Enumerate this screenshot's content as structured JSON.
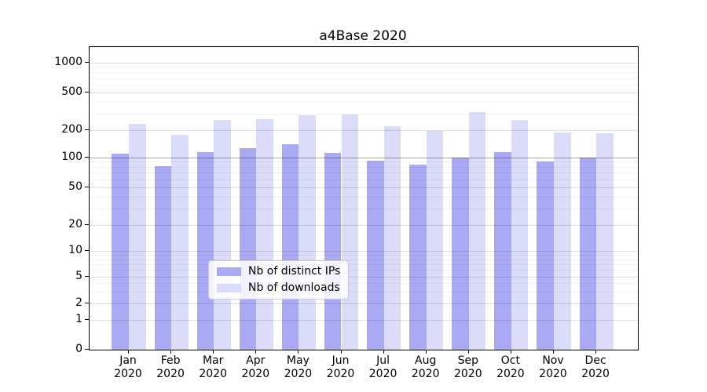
{
  "title": "a4Base 2020",
  "chart_data": {
    "type": "bar",
    "title": "a4Base 2020",
    "categories": [
      "Jan 2020",
      "Feb 2020",
      "Mar 2020",
      "Apr 2020",
      "May 2020",
      "Jun 2020",
      "Jul 2020",
      "Aug 2020",
      "Sep 2020",
      "Oct 2020",
      "Nov 2020",
      "Dec 2020"
    ],
    "series": [
      {
        "name": "Nb of distinct IPs",
        "color": "#a9a9f4",
        "values": [
          110,
          82,
          113,
          125,
          140,
          112,
          93,
          85,
          100,
          113,
          90,
          100
        ]
      },
      {
        "name": "Nb of downloads",
        "color": "#dbdbfa",
        "values": [
          235,
          178,
          255,
          262,
          290,
          295,
          222,
          196,
          312,
          255,
          190,
          185
        ]
      }
    ],
    "xlabel": "",
    "ylabel": "",
    "y_axis": {
      "scale": "log-1-2-5",
      "ticks": [
        0,
        1,
        2,
        5,
        10,
        20,
        50,
        100,
        200,
        500,
        1000
      ],
      "minor_gridlines": [
        3,
        4,
        6,
        7,
        8,
        9,
        30,
        40,
        60,
        70,
        80,
        90,
        300,
        400,
        600,
        700,
        800,
        900
      ],
      "emphasized_gridline": 100
    },
    "ylim": [
      0,
      1400
    ],
    "grid": true,
    "legend_position": "lower center inside"
  },
  "colors": {
    "distinct_ips_bar": "#a9a9f4",
    "downloads_bar": "#dbdbfa",
    "grid_major": "rgba(0,0,0,0.13)",
    "grid_minor": "rgba(0,0,0,0.055)",
    "grid_emphasis": "rgba(0,0,0,0.34)",
    "axis": "#000000",
    "background": "#ffffff"
  }
}
